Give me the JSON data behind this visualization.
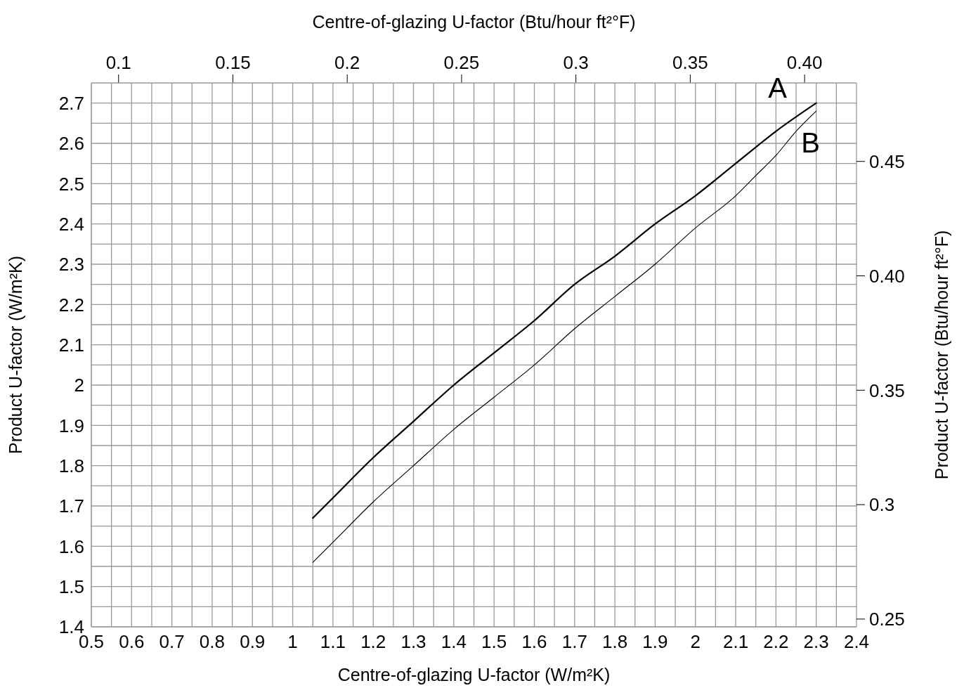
{
  "chart_data": {
    "type": "line",
    "xlabel": "Centre-of-glazing U-factor (W/m²K)",
    "ylabel": "Product U-factor (W/m²K)",
    "x2label": "Centre-of-glazing U-factor (Btu/hour ft²°F)",
    "y2label": "Product U-factor (Btu/hour ft²°F)",
    "series": [
      {
        "name": "A",
        "color": "#000000",
        "x": [
          1.05,
          1.1,
          1.2,
          1.3,
          1.4,
          1.5,
          1.6,
          1.7,
          1.8,
          1.9,
          2.0,
          2.1,
          2.2,
          2.3
        ],
        "values": [
          1.67,
          1.72,
          1.82,
          1.91,
          2.0,
          2.08,
          2.16,
          2.25,
          2.32,
          2.4,
          2.47,
          2.55,
          2.63,
          2.7
        ]
      },
      {
        "name": "B",
        "color": "#000000",
        "x": [
          1.05,
          1.1,
          1.2,
          1.3,
          1.4,
          1.5,
          1.6,
          1.7,
          1.8,
          1.9,
          2.0,
          2.1,
          2.15,
          2.2,
          2.25,
          2.3
        ],
        "values": [
          1.56,
          1.61,
          1.71,
          1.8,
          1.89,
          1.97,
          2.05,
          2.14,
          2.22,
          2.3,
          2.39,
          2.47,
          2.52,
          2.57,
          2.63,
          2.68
        ]
      }
    ],
    "xlim": [
      0.5,
      2.4
    ],
    "xticks": [
      0.5,
      {
        "value": 0.55,
        "label": null
      },
      0.6,
      {
        "value": 0.65,
        "label": null
      },
      0.7,
      {
        "value": 0.75,
        "label": null
      },
      0.8,
      {
        "value": 0.85,
        "label": null
      },
      0.9,
      {
        "value": 0.95,
        "label": null
      },
      1,
      {
        "value": 1.05,
        "label": null
      },
      1.1,
      {
        "value": 1.15,
        "label": null
      },
      1.2,
      {
        "value": 1.25,
        "label": null
      },
      1.3,
      {
        "value": 1.35,
        "label": null
      },
      1.4,
      {
        "value": 1.45,
        "label": null
      },
      1.5,
      {
        "value": 1.55,
        "label": null
      },
      1.6,
      {
        "value": 1.65,
        "label": null
      },
      1.7,
      {
        "value": 1.75,
        "label": null
      },
      1.8,
      {
        "value": 1.85,
        "label": null
      },
      1.9,
      {
        "value": 1.95,
        "label": null
      },
      2,
      {
        "value": 2.05,
        "label": null
      },
      2.1,
      {
        "value": 2.15,
        "label": null
      },
      2.2,
      {
        "value": 2.25,
        "label": null
      },
      2.3,
      {
        "value": 2.35,
        "label": null
      },
      2.4
    ],
    "ylim": [
      1.4,
      2.75
    ],
    "yticks": [
      1.4,
      {
        "value": 1.45,
        "label": null
      },
      1.5,
      {
        "value": 1.55,
        "label": null
      },
      1.6,
      {
        "value": 1.65,
        "label": null
      },
      1.7,
      {
        "value": 1.75,
        "label": null
      },
      1.8,
      {
        "value": 1.85,
        "label": null
      },
      1.9,
      {
        "value": 1.95,
        "label": null
      },
      2,
      {
        "value": 2.05,
        "label": null
      },
      2.1,
      {
        "value": 2.15,
        "label": null
      },
      2.2,
      {
        "value": 2.25,
        "label": null
      },
      2.3,
      {
        "value": 2.35,
        "label": null
      },
      2.4,
      {
        "value": 2.45,
        "label": null
      },
      2.5,
      {
        "value": 2.55,
        "label": null
      },
      2.6,
      {
        "value": 2.65,
        "label": null
      },
      2.7,
      {
        "value": 2.75,
        "label": null
      }
    ],
    "x2lim": [
      0.0881,
      0.4227
    ],
    "x2ticks": [
      0.1,
      0.15,
      0.2,
      0.25,
      0.3,
      0.35,
      {
        "value": 0.4,
        "label": "0.40"
      }
    ],
    "y2lim": [
      0.2466,
      0.4843
    ],
    "y2ticks": [
      0.25,
      0.3,
      0.35,
      {
        "value": 0.4,
        "label": "0.40"
      },
      0.45
    ],
    "grid": true
  }
}
